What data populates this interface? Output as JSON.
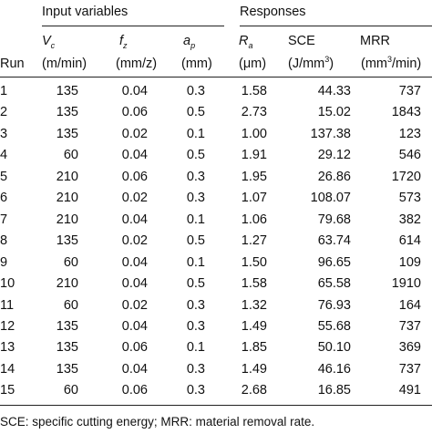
{
  "groups": {
    "input": "Input variables",
    "responses": "Responses"
  },
  "headers": {
    "run": "Run",
    "vc_sym": "V",
    "vc_sub": "c",
    "vc_unit": "(m/min)",
    "fz_sym": "f",
    "fz_sub": "z",
    "fz_unit": "(mm/z)",
    "ap_sym": "a",
    "ap_sub": "p",
    "ap_unit": "(mm)",
    "ra_sym": "R",
    "ra_sub": "a",
    "ra_unit": "(μm)",
    "sce": "SCE",
    "sce_unit_pre": "(J/mm",
    "sce_unit_sup": "3",
    "sce_unit_post": ")",
    "mrr": "MRR",
    "mrr_unit_pre": "(mm",
    "mrr_unit_sup": "3",
    "mrr_unit_post": "/min)"
  },
  "rows": [
    [
      "1",
      "135",
      "0.04",
      "0.3",
      "1.58",
      "44.33",
      "737"
    ],
    [
      "2",
      "135",
      "0.06",
      "0.5",
      "2.73",
      "15.02",
      "1843"
    ],
    [
      "3",
      "135",
      "0.02",
      "0.1",
      "1.00",
      "137.38",
      "123"
    ],
    [
      "4",
      "60",
      "0.04",
      "0.5",
      "1.91",
      "29.12",
      "546"
    ],
    [
      "5",
      "210",
      "0.06",
      "0.3",
      "1.95",
      "26.86",
      "1720"
    ],
    [
      "6",
      "210",
      "0.02",
      "0.3",
      "1.07",
      "108.07",
      "573"
    ],
    [
      "7",
      "210",
      "0.04",
      "0.1",
      "1.06",
      "79.68",
      "382"
    ],
    [
      "8",
      "135",
      "0.02",
      "0.5",
      "1.27",
      "63.74",
      "614"
    ],
    [
      "9",
      "60",
      "0.04",
      "0.1",
      "1.50",
      "96.65",
      "109"
    ],
    [
      "10",
      "210",
      "0.04",
      "0.5",
      "1.58",
      "65.58",
      "1910"
    ],
    [
      "11",
      "60",
      "0.02",
      "0.3",
      "1.32",
      "76.93",
      "164"
    ],
    [
      "12",
      "135",
      "0.04",
      "0.3",
      "1.49",
      "55.68",
      "737"
    ],
    [
      "13",
      "135",
      "0.06",
      "0.1",
      "1.85",
      "50.10",
      "369"
    ],
    [
      "14",
      "135",
      "0.04",
      "0.3",
      "1.49",
      "46.16",
      "737"
    ],
    [
      "15",
      "60",
      "0.06",
      "0.3",
      "2.68",
      "16.85",
      "491"
    ]
  ],
  "footnote": "SCE: specific cutting energy; MRR: material removal rate."
}
